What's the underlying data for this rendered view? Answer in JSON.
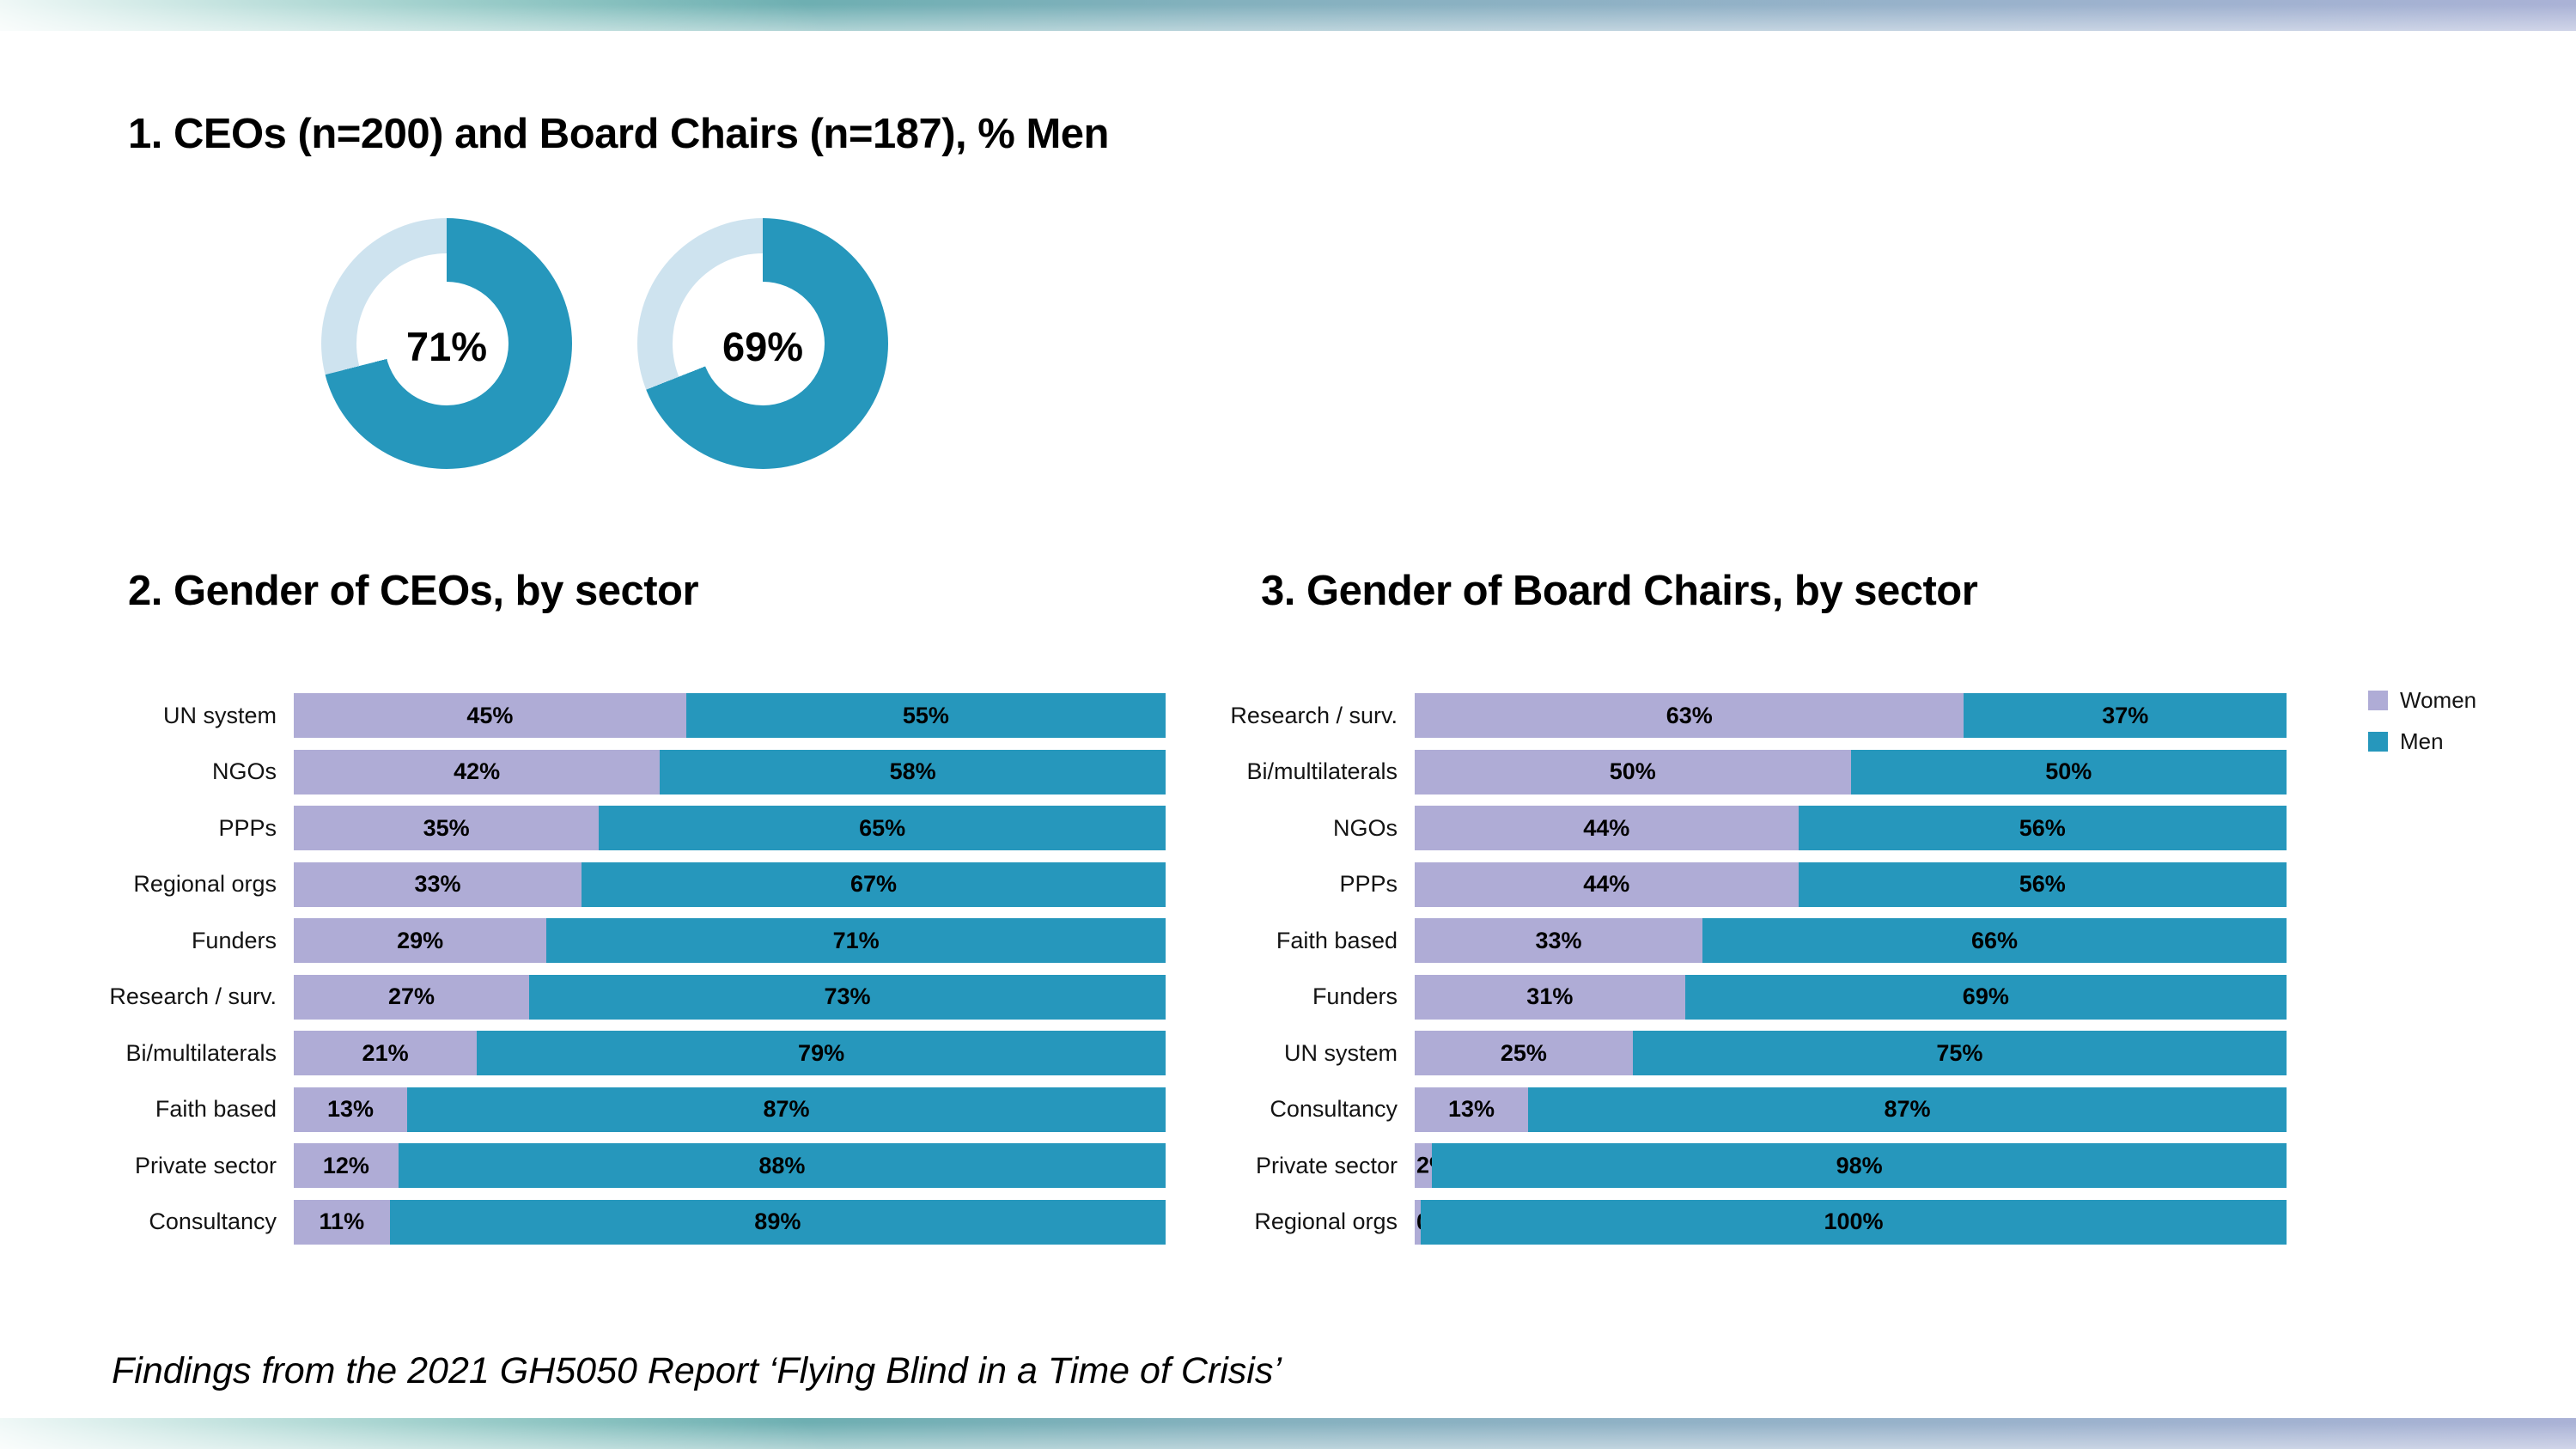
{
  "sections": {
    "donut_section": {
      "title": "1. CEOs (n=200) and Board Chairs (n=187), % Men"
    },
    "ceo_section": {
      "title": "2. Gender of CEOs, by sector"
    },
    "board_section": {
      "title": "3. Gender of Board Chairs, by sector"
    }
  },
  "legend": {
    "women": "Women",
    "men": "Men"
  },
  "footer": {
    "text": "Findings from the 2021 GH5050 Report ‘Flying Blind in a Time of Crisis’"
  },
  "colors": {
    "men_teal": "#2697BC",
    "women_purple": "#AFACD6",
    "donut_remainder": "#CEE3EF",
    "gradient_teal": "#45AB9B",
    "gradient_purple": "#AAB2D6"
  },
  "chart_data": [
    {
      "type": "pie",
      "subtype": "donut",
      "title": "1. CEOs (n=200) and Board Chairs (n=187), % Men",
      "donuts": [
        {
          "group": "CEOs (n=200)",
          "label": "71%",
          "men_pct": 71,
          "remainder_pct": 29
        },
        {
          "group": "Board Chairs (n=187)",
          "label": "69%",
          "men_pct": 69,
          "remainder_pct": 31
        }
      ],
      "colors": {
        "men": "#2697BC",
        "remainder": "#CEE3EF"
      }
    },
    {
      "type": "bar",
      "stacked": true,
      "orientation": "horizontal",
      "title": "2. Gender of CEOs, by sector",
      "xlim": [
        0,
        100
      ],
      "grid": false,
      "legend_position": "right-of-chart-3",
      "categories": [
        "UN system",
        "NGOs",
        "PPPs",
        "Regional orgs",
        "Funders",
        "Research / surv.",
        "Bi/multilaterals",
        "Faith based",
        "Private sector",
        "Consultancy"
      ],
      "series": [
        {
          "name": "Women",
          "color": "#AFACD6",
          "values": [
            45,
            42,
            35,
            33,
            29,
            27,
            21,
            13,
            12,
            11
          ]
        },
        {
          "name": "Men",
          "color": "#2697BC",
          "values": [
            55,
            58,
            65,
            67,
            71,
            73,
            79,
            87,
            88,
            89
          ]
        }
      ]
    },
    {
      "type": "bar",
      "stacked": true,
      "orientation": "horizontal",
      "title": "3. Gender of Board Chairs, by sector",
      "xlim": [
        0,
        100
      ],
      "grid": false,
      "legend_position": "right",
      "categories": [
        "Research / surv.",
        "Bi/multilaterals",
        "NGOs",
        "PPPs",
        "Faith based",
        "Funders",
        "UN system",
        "Consultancy",
        "Private sector",
        "Regional orgs"
      ],
      "series": [
        {
          "name": "Women",
          "color": "#AFACD6",
          "values": [
            63,
            50,
            44,
            44,
            33,
            31,
            25,
            13,
            2,
            0
          ]
        },
        {
          "name": "Men",
          "color": "#2697BC",
          "values": [
            37,
            50,
            56,
            56,
            66,
            69,
            75,
            87,
            98,
            100
          ]
        }
      ]
    }
  ]
}
